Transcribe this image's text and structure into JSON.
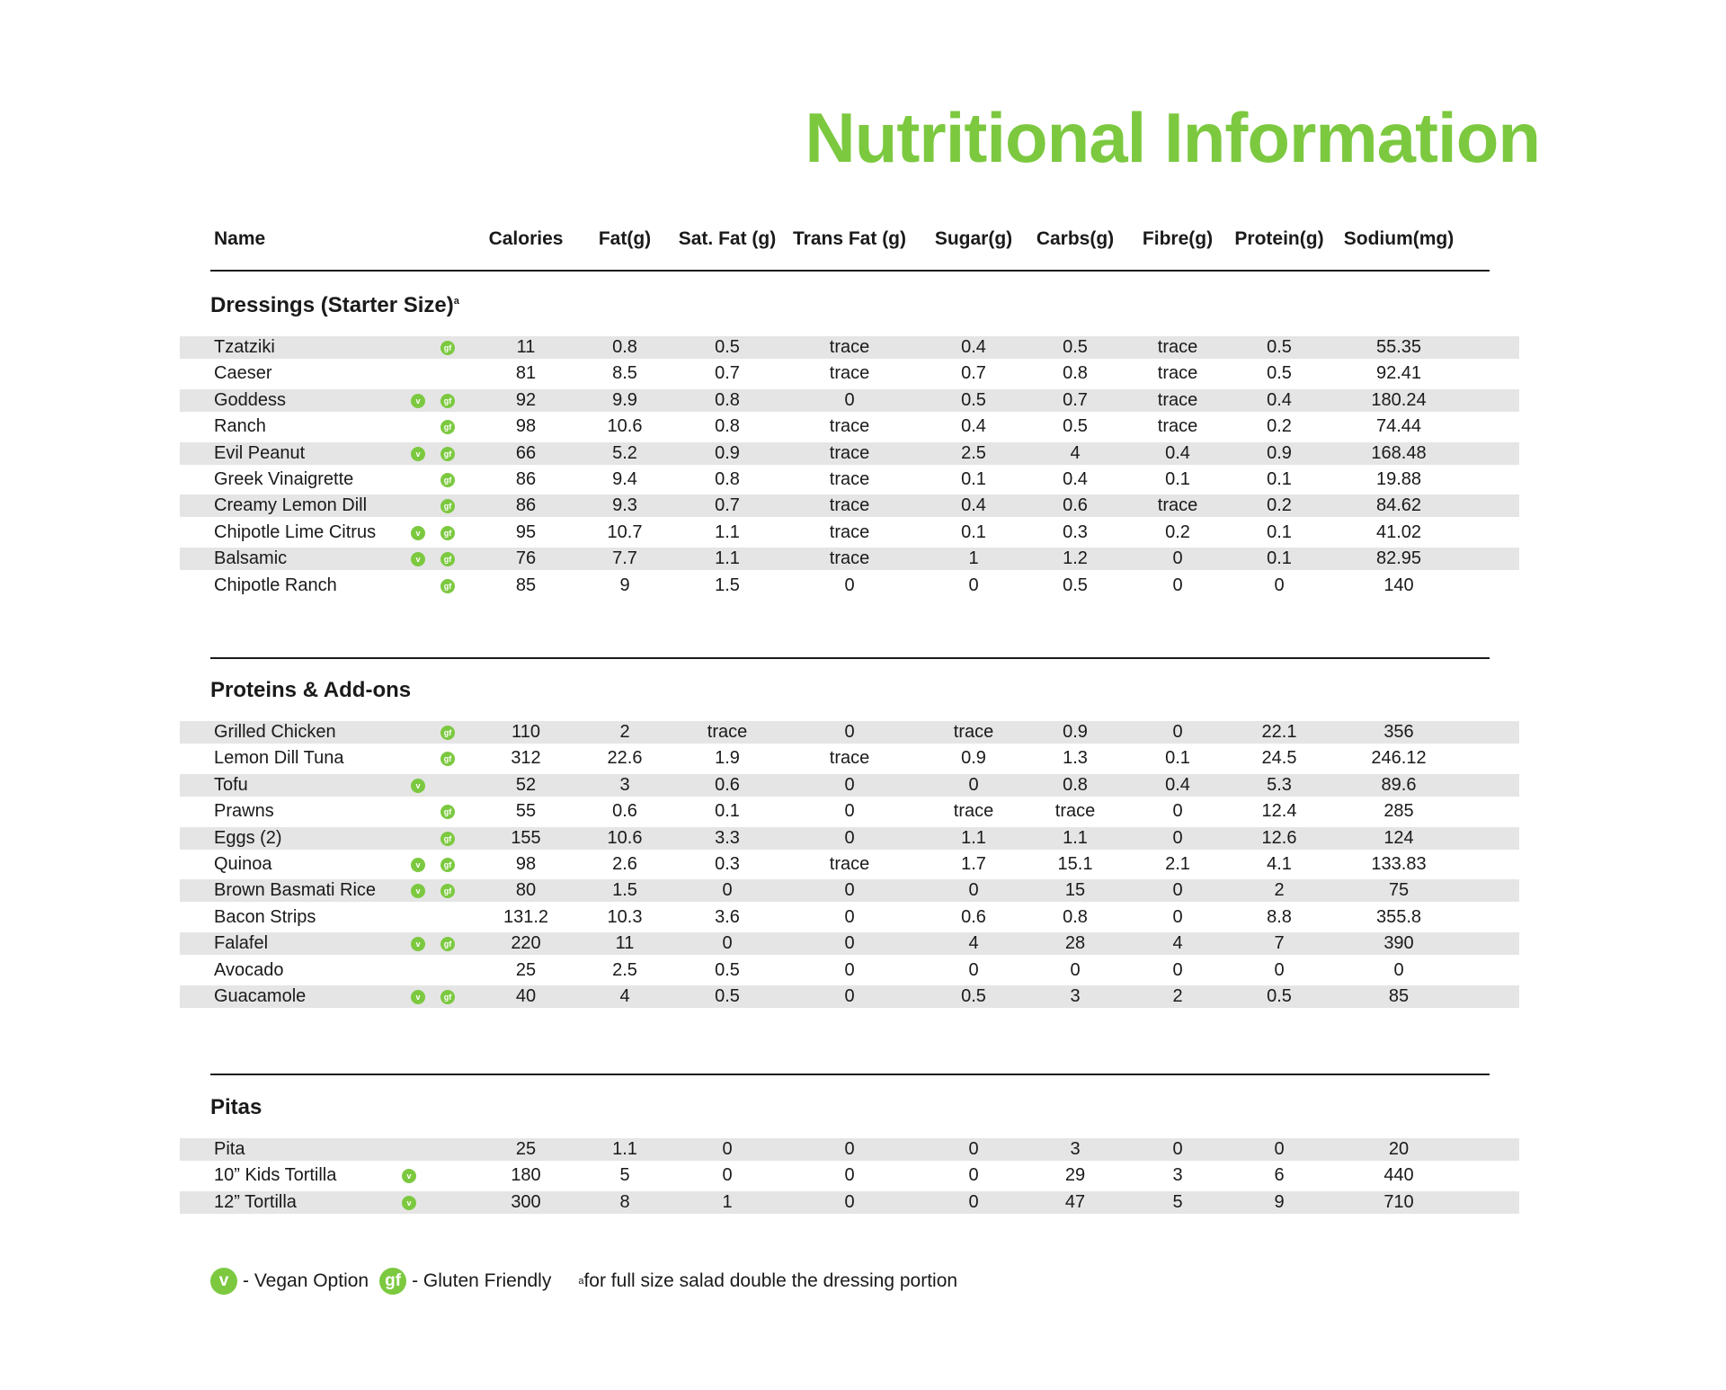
{
  "title": "Nutritional Information",
  "columns": [
    "Name",
    "Calories",
    "Fat(g)",
    "Sat. Fat (g)",
    "Trans Fat (g)",
    "Sugar(g)",
    "Carbs(g)",
    "Fibre(g)",
    "Protein(g)",
    "Sodium(mg)"
  ],
  "accent_color": "#7cc940",
  "badges": {
    "vegan": "v",
    "gluten": "gf"
  },
  "sections": [
    {
      "title": "Dressings (Starter Size)",
      "footnote_mark": "a",
      "rows": [
        {
          "name": "Tzatziki",
          "v": false,
          "gf": true,
          "values": [
            "11",
            "0.8",
            "0.5",
            "trace",
            "0.4",
            "0.5",
            "trace",
            "0.5",
            "55.35"
          ]
        },
        {
          "name": "Caeser",
          "v": false,
          "gf": false,
          "values": [
            "81",
            "8.5",
            "0.7",
            "trace",
            "0.7",
            "0.8",
            "trace",
            "0.5",
            "92.41"
          ]
        },
        {
          "name": "Goddess",
          "v": true,
          "gf": true,
          "values": [
            "92",
            "9.9",
            "0.8",
            "0",
            "0.5",
            "0.7",
            "trace",
            "0.4",
            "180.24"
          ]
        },
        {
          "name": "Ranch",
          "v": false,
          "gf": true,
          "values": [
            "98",
            "10.6",
            "0.8",
            "trace",
            "0.4",
            "0.5",
            "trace",
            "0.2",
            "74.44"
          ]
        },
        {
          "name": "Evil Peanut",
          "v": true,
          "gf": true,
          "values": [
            "66",
            "5.2",
            "0.9",
            "trace",
            "2.5",
            "4",
            "0.4",
            "0.9",
            "168.48"
          ]
        },
        {
          "name": "Greek Vinaigrette",
          "v": false,
          "gf": true,
          "values": [
            "86",
            "9.4",
            "0.8",
            "trace",
            "0.1",
            "0.4",
            "0.1",
            "0.1",
            "19.88"
          ]
        },
        {
          "name": "Creamy Lemon Dill",
          "v": false,
          "gf": true,
          "values": [
            "86",
            "9.3",
            "0.7",
            "trace",
            "0.4",
            "0.6",
            "trace",
            "0.2",
            "84.62"
          ]
        },
        {
          "name": "Chipotle Lime Citrus",
          "v": true,
          "gf": true,
          "values": [
            "95",
            "10.7",
            "1.1",
            "trace",
            "0.1",
            "0.3",
            "0.2",
            "0.1",
            "41.02"
          ]
        },
        {
          "name": "Balsamic",
          "v": true,
          "gf": true,
          "values": [
            "76",
            "7.7",
            "1.1",
            "trace",
            "1",
            "1.2",
            "0",
            "0.1",
            "82.95"
          ]
        },
        {
          "name": "Chipotle Ranch",
          "v": false,
          "gf": true,
          "values": [
            "85",
            "9",
            "1.5",
            "0",
            "0",
            "0.5",
            "0",
            "0",
            "140"
          ]
        }
      ]
    },
    {
      "title": "Proteins & Add-ons",
      "rows": [
        {
          "name": "Grilled Chicken",
          "v": false,
          "gf": true,
          "values": [
            "110",
            "2",
            "trace",
            "0",
            "trace",
            "0.9",
            "0",
            "22.1",
            "356"
          ]
        },
        {
          "name": "Lemon Dill Tuna",
          "v": false,
          "gf": true,
          "values": [
            "312",
            "22.6",
            "1.9",
            "trace",
            "0.9",
            "1.3",
            "0.1",
            "24.5",
            "246.12"
          ]
        },
        {
          "name": "Tofu",
          "v": true,
          "gf": false,
          "values": [
            "52",
            "3",
            "0.6",
            "0",
            "0",
            "0.8",
            "0.4",
            "5.3",
            "89.6"
          ]
        },
        {
          "name": "Prawns",
          "v": false,
          "gf": true,
          "values": [
            "55",
            "0.6",
            "0.1",
            "0",
            "trace",
            "trace",
            "0",
            "12.4",
            "285"
          ]
        },
        {
          "name": "Eggs (2)",
          "v": false,
          "gf": true,
          "values": [
            "155",
            "10.6",
            "3.3",
            "0",
            "1.1",
            "1.1",
            "0",
            "12.6",
            "124"
          ]
        },
        {
          "name": "Quinoa",
          "v": true,
          "gf": true,
          "values": [
            "98",
            "2.6",
            "0.3",
            "trace",
            "1.7",
            "15.1",
            "2.1",
            "4.1",
            "133.83"
          ]
        },
        {
          "name": "Brown Basmati Rice",
          "v": true,
          "gf": true,
          "values": [
            "80",
            "1.5",
            "0",
            "0",
            "0",
            "15",
            "0",
            "2",
            "75"
          ]
        },
        {
          "name": "Bacon Strips",
          "v": false,
          "gf": false,
          "values": [
            "131.2",
            "10.3",
            "3.6",
            "0",
            "0.6",
            "0.8",
            "0",
            "8.8",
            "355.8"
          ]
        },
        {
          "name": "Falafel",
          "v": true,
          "gf": true,
          "values": [
            "220",
            "11",
            "0",
            "0",
            "4",
            "28",
            "4",
            "7",
            "390"
          ]
        },
        {
          "name": "Avocado",
          "v": false,
          "gf": false,
          "values": [
            "25",
            "2.5",
            "0.5",
            "0",
            "0",
            "0",
            "0",
            "0",
            "0"
          ]
        },
        {
          "name": "Guacamole",
          "v": true,
          "gf": true,
          "values": [
            "40",
            "4",
            "0.5",
            "0",
            "0.5",
            "3",
            "2",
            "0.5",
            "85"
          ]
        }
      ]
    },
    {
      "title": "Pitas",
      "rows": [
        {
          "name": "Pita",
          "v": false,
          "gf": false,
          "values": [
            "25",
            "1.1",
            "0",
            "0",
            "0",
            "3",
            "0",
            "0",
            "20"
          ]
        },
        {
          "name": "10” Kids Tortilla",
          "v": true,
          "gf": false,
          "vpos": "left",
          "values": [
            "180",
            "5",
            "0",
            "0",
            "0",
            "29",
            "3",
            "6",
            "440"
          ]
        },
        {
          "name": "12” Tortilla",
          "v": true,
          "gf": false,
          "vpos": "left",
          "values": [
            "300",
            "8",
            "1",
            "0",
            "0",
            "47",
            "5",
            "9",
            "710"
          ]
        }
      ]
    }
  ],
  "legend": {
    "vegan_label": "- Vegan Option",
    "gluten_label": "- Gluten Friendly",
    "footnote_mark": "a",
    "footnote": "for full size salad double the dressing portion"
  }
}
